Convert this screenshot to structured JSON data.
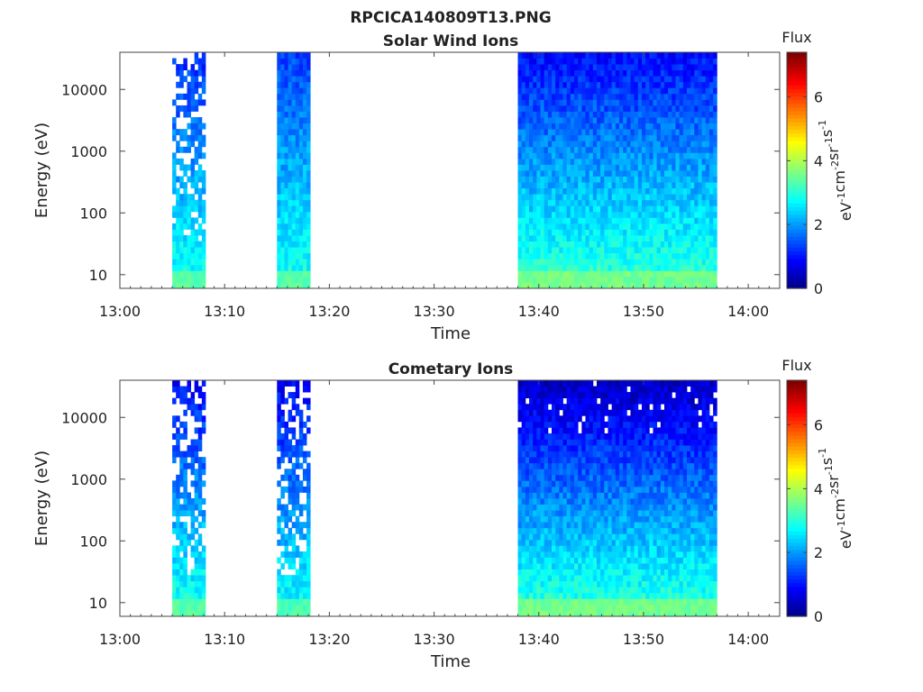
{
  "figure": {
    "title": "RPCICA140809T13.PNG"
  },
  "chart_data": [
    {
      "type": "heatmap",
      "title": "Solar Wind Ions",
      "xlabel": "Time",
      "ylabel": "Energy (eV)",
      "x_ticks": [
        "13:00",
        "13:10",
        "13:20",
        "13:30",
        "13:40",
        "13:50",
        "14:00"
      ],
      "x_range": [
        "13:00",
        "14:03"
      ],
      "y_scale": "log",
      "y_ticks": [
        10,
        100,
        1000,
        10000
      ],
      "y_range": [
        6,
        40000
      ],
      "colorbar": {
        "title": "Flux",
        "label_base": "eV",
        "label_sups": [
          "-1",
          "-2",
          "-1",
          "-1"
        ],
        "label_parts": [
          "cm",
          "sr",
          "s"
        ],
        "ticks": [
          0,
          2,
          4,
          6
        ],
        "range": [
          0,
          7.4
        ],
        "colormap": "jet"
      },
      "data_blocks": [
        {
          "start": "13:05",
          "end": "13:08",
          "flux_level_low_energy": 3.0,
          "flux_level_high_energy": 1.2,
          "sparse": true
        },
        {
          "start": "13:15",
          "end": "13:18",
          "flux_level_low_energy": 3.0,
          "flux_level_high_energy": 1.4,
          "sparse": false
        },
        {
          "start": "13:38",
          "end": "13:57",
          "flux_level_low_energy": 3.2,
          "flux_level_high_energy": 1.0,
          "sparse": false
        }
      ]
    },
    {
      "type": "heatmap",
      "title": "Cometary Ions",
      "xlabel": "Time",
      "ylabel": "Energy (eV)",
      "x_ticks": [
        "13:00",
        "13:10",
        "13:20",
        "13:30",
        "13:40",
        "13:50",
        "14:00"
      ],
      "x_range": [
        "13:00",
        "14:03"
      ],
      "y_scale": "log",
      "y_ticks": [
        10,
        100,
        1000,
        10000
      ],
      "y_range": [
        6,
        40000
      ],
      "colorbar": {
        "title": "Flux",
        "label_base": "eV",
        "label_sups": [
          "-1",
          "-2",
          "-1",
          "-1"
        ],
        "label_parts": [
          "cm",
          "sr",
          "s"
        ],
        "ticks": [
          0,
          2,
          4,
          6
        ],
        "range": [
          0,
          7.4
        ],
        "colormap": "jet"
      },
      "data_blocks": [
        {
          "start": "13:05",
          "end": "13:08",
          "flux_level_low_energy": 3.0,
          "flux_level_high_energy": 1.0,
          "sparse": true
        },
        {
          "start": "13:15",
          "end": "13:18",
          "flux_level_low_energy": 2.9,
          "flux_level_high_energy": 0.9,
          "sparse": true
        },
        {
          "start": "13:38",
          "end": "13:57",
          "flux_level_low_energy": 3.2,
          "flux_level_high_energy": 0.5,
          "sparse": false
        }
      ]
    }
  ]
}
